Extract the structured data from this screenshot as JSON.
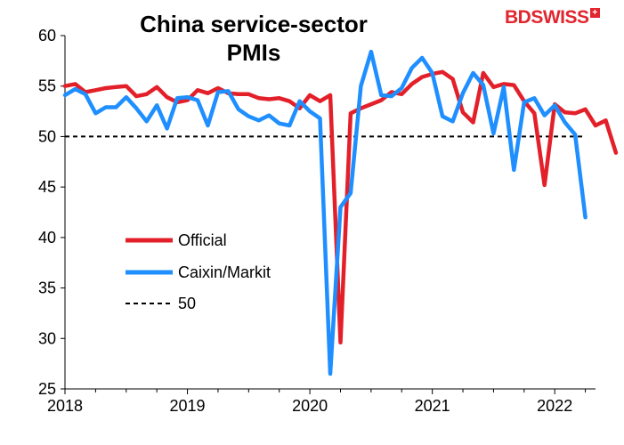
{
  "brand": {
    "logo_text": "BDSWISS",
    "logo_mark": "+",
    "accent": "#e1262f"
  },
  "chart_data": {
    "type": "line",
    "title_lines": [
      "China service-sector",
      "PMIs"
    ],
    "xlabel": "",
    "ylabel": "",
    "ylim": [
      25,
      60
    ],
    "yticks": [
      25,
      30,
      35,
      40,
      45,
      50,
      55,
      60
    ],
    "xlim": [
      2018.0,
      2022.333
    ],
    "xticks": [
      {
        "value": 2018,
        "label": "2018"
      },
      {
        "value": 2019,
        "label": "2019"
      },
      {
        "value": 2020,
        "label": "2020"
      },
      {
        "value": 2021,
        "label": "2021"
      },
      {
        "value": 2022,
        "label": "2022"
      }
    ],
    "grid": false,
    "legend_position": "left-middle",
    "reference_line": {
      "name": "50",
      "value": 50,
      "color": "#000000",
      "style": "dashed"
    },
    "series": [
      {
        "name": "Official",
        "color": "#e3202a",
        "start": 2018.0,
        "step": 0.08333,
        "values": [
          55.0,
          55.2,
          54.4,
          54.6,
          54.8,
          54.9,
          55.0,
          54.0,
          54.2,
          54.9,
          53.9,
          53.4,
          53.6,
          54.6,
          54.3,
          54.8,
          54.3,
          54.2,
          54.2,
          53.8,
          53.7,
          53.8,
          53.5,
          52.8,
          54.1,
          53.5,
          54.1,
          29.6,
          52.3,
          52.8,
          53.2,
          53.6,
          54.4,
          54.2,
          55.2,
          55.9,
          56.2,
          56.4,
          55.7,
          52.4,
          51.4,
          56.3,
          54.9,
          55.2,
          55.1,
          53.5,
          52.3,
          45.2,
          53.2,
          52.4,
          52.3,
          52.7,
          51.1,
          51.6,
          48.4
        ]
      },
      {
        "name": "Caixin/Markit",
        "color": "#1f8fff",
        "start": 2018.0,
        "step": 0.08333,
        "values": [
          54.1,
          54.7,
          54.2,
          52.3,
          52.9,
          52.9,
          53.9,
          52.8,
          51.5,
          53.1,
          50.8,
          53.8,
          53.9,
          53.6,
          51.1,
          54.4,
          54.5,
          52.7,
          52.0,
          51.6,
          52.1,
          51.3,
          51.1,
          53.5,
          52.5,
          51.8,
          26.5,
          43.0,
          44.4,
          55.0,
          58.4,
          54.1,
          54.0,
          54.8,
          56.8,
          57.8,
          56.3,
          52.0,
          51.5,
          54.3,
          56.3,
          55.1,
          50.3,
          54.9,
          46.7,
          53.4,
          53.8,
          52.1,
          53.1,
          51.4,
          50.2,
          42.0
        ]
      }
    ]
  }
}
